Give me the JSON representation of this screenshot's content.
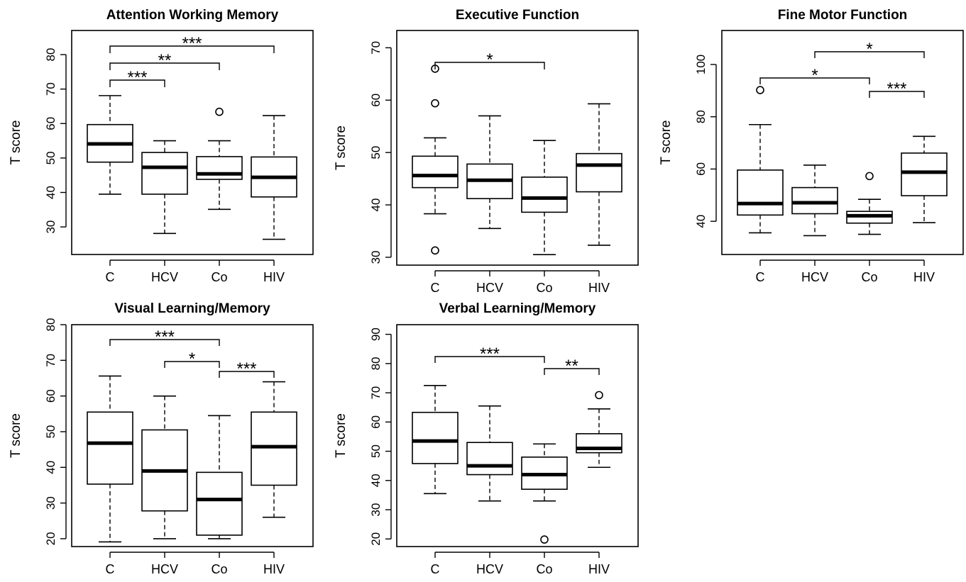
{
  "chart_data": [
    {
      "type": "box",
      "title": "Attention Working Memory",
      "ylabel": "T score",
      "categories": [
        "C",
        "HCV",
        "Co",
        "HIV"
      ],
      "ylim": [
        22,
        87
      ],
      "yticks": [
        30,
        40,
        50,
        60,
        70,
        80
      ],
      "boxes": [
        {
          "category": "C",
          "min": 39.5,
          "q1": 48.8,
          "median": 54.1,
          "q3": 59.7,
          "max": 68.1,
          "outliers": []
        },
        {
          "category": "HCV",
          "min": 28.1,
          "q1": 39.5,
          "median": 47.3,
          "q3": 51.6,
          "max": 55.0,
          "outliers": []
        },
        {
          "category": "Co",
          "min": 35.1,
          "q1": 43.8,
          "median": 45.4,
          "q3": 50.4,
          "max": 55.0,
          "outliers": [
            63.4
          ]
        },
        {
          "category": "HIV",
          "min": 26.4,
          "q1": 38.7,
          "median": 44.4,
          "q3": 50.3,
          "max": 62.3,
          "outliers": []
        }
      ],
      "comparisons": [
        {
          "from": "C",
          "to": "HCV",
          "label": "***"
        },
        {
          "from": "C",
          "to": "Co",
          "label": "**"
        },
        {
          "from": "C",
          "to": "HIV",
          "label": "***"
        }
      ]
    },
    {
      "type": "box",
      "title": "Executive Function",
      "ylabel": "T score",
      "categories": [
        "C",
        "HCV",
        "Co",
        "HIV"
      ],
      "ylim": [
        28.5,
        73.3
      ],
      "yticks": [
        30,
        40,
        50,
        60,
        70
      ],
      "boxes": [
        {
          "category": "C",
          "min": 38.3,
          "q1": 43.3,
          "median": 45.6,
          "q3": 49.3,
          "max": 52.8,
          "outliers": [
            66.0,
            59.4,
            31.3
          ]
        },
        {
          "category": "HCV",
          "min": 35.5,
          "q1": 41.2,
          "median": 44.7,
          "q3": 47.8,
          "max": 57.0,
          "outliers": []
        },
        {
          "category": "Co",
          "min": 30.5,
          "q1": 38.6,
          "median": 41.3,
          "q3": 45.3,
          "max": 52.3,
          "outliers": []
        },
        {
          "category": "HIV",
          "min": 32.3,
          "q1": 42.5,
          "median": 47.6,
          "q3": 49.8,
          "max": 59.3,
          "outliers": []
        }
      ],
      "comparisons": [
        {
          "from": "C",
          "to": "Co",
          "label": "*"
        }
      ]
    },
    {
      "type": "box",
      "title": "Fine Motor Function",
      "ylabel": "T score",
      "categories": [
        "C",
        "HCV",
        "Co",
        "HIV"
      ],
      "ylim": [
        27.3,
        113
      ],
      "yticks": [
        40,
        60,
        80,
        100
      ],
      "boxes": [
        {
          "category": "C",
          "min": 35.6,
          "q1": 42.4,
          "median": 46.8,
          "q3": 59.6,
          "max": 77.0,
          "outliers": [
            90.2
          ]
        },
        {
          "category": "HCV",
          "min": 34.5,
          "q1": 42.9,
          "median": 47.1,
          "q3": 52.9,
          "max": 61.5,
          "outliers": []
        },
        {
          "category": "Co",
          "min": 35.0,
          "q1": 39.3,
          "median": 42.1,
          "q3": 43.8,
          "max": 48.4,
          "outliers": [
            57.3
          ]
        },
        {
          "category": "HIV",
          "min": 39.5,
          "q1": 49.8,
          "median": 58.8,
          "q3": 66.1,
          "max": 72.5,
          "outliers": []
        }
      ],
      "comparisons": [
        {
          "from": "C",
          "to": "Co",
          "label": "*"
        },
        {
          "from": "Co",
          "to": "HIV",
          "label": "***"
        },
        {
          "from": "HCV",
          "to": "HIV",
          "label": "*"
        }
      ]
    },
    {
      "type": "box",
      "title": "Visual Learning/Memory",
      "ylabel": "T score",
      "categories": [
        "C",
        "HCV",
        "Co",
        "HIV"
      ],
      "ylim": [
        17.8,
        80
      ],
      "yticks": [
        20,
        30,
        40,
        50,
        60,
        70,
        80
      ],
      "boxes": [
        {
          "category": "C",
          "min": 19.1,
          "q1": 35.3,
          "median": 46.8,
          "q3": 55.5,
          "max": 65.6,
          "outliers": []
        },
        {
          "category": "HCV",
          "min": 20.0,
          "q1": 27.8,
          "median": 39.0,
          "q3": 50.5,
          "max": 60.0,
          "outliers": []
        },
        {
          "category": "Co",
          "min": 20.0,
          "q1": 21.0,
          "median": 31.0,
          "q3": 38.6,
          "max": 54.5,
          "outliers": []
        },
        {
          "category": "HIV",
          "min": 26.0,
          "q1": 35.0,
          "median": 45.8,
          "q3": 55.5,
          "max": 64.0,
          "outliers": []
        }
      ],
      "comparisons": [
        {
          "from": "C",
          "to": "Co",
          "label": "***"
        },
        {
          "from": "HCV",
          "to": "Co",
          "label": "*"
        },
        {
          "from": "Co",
          "to": "HIV",
          "label": "***"
        }
      ]
    },
    {
      "type": "box",
      "title": "Verbal Learning/Memory",
      "ylabel": "T score",
      "categories": [
        "C",
        "HCV",
        "Co",
        "HIV"
      ],
      "ylim": [
        17.4,
        93.3
      ],
      "yticks": [
        20,
        30,
        40,
        50,
        60,
        70,
        80,
        90
      ],
      "boxes": [
        {
          "category": "C",
          "min": 35.5,
          "q1": 45.8,
          "median": 53.5,
          "q3": 63.3,
          "max": 72.5,
          "outliers": []
        },
        {
          "category": "HCV",
          "min": 33.0,
          "q1": 42.0,
          "median": 45.0,
          "q3": 53.0,
          "max": 65.5,
          "outliers": []
        },
        {
          "category": "Co",
          "min": 33.0,
          "q1": 37.0,
          "median": 42.0,
          "q3": 48.0,
          "max": 52.5,
          "outliers": [
            19.8
          ]
        },
        {
          "category": "HIV",
          "min": 44.5,
          "q1": 49.5,
          "median": 51.0,
          "q3": 56.0,
          "max": 64.5,
          "outliers": [
            69.2
          ]
        }
      ],
      "comparisons": [
        {
          "from": "C",
          "to": "Co",
          "label": "***"
        },
        {
          "from": "Co",
          "to": "HIV",
          "label": "**"
        }
      ]
    }
  ]
}
